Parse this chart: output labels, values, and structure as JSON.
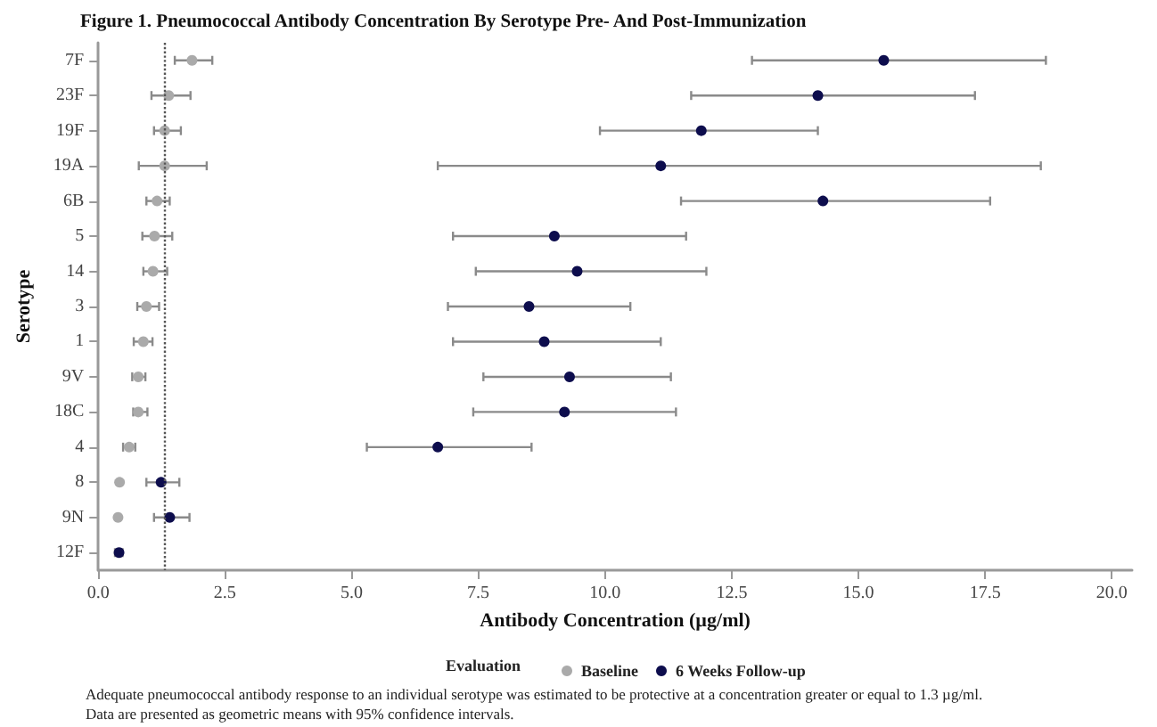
{
  "chart_data": {
    "type": "scatter",
    "orientation": "horizontal",
    "title": "Figure 1. Pneumococcal Antibody Concentration By Serotype Pre- And Post-Immunization",
    "xlabel": "Antibody Concentration (µg/ml)",
    "ylabel": "Serotype",
    "legend_title": "Evaluation",
    "legend": "bottom",
    "marker": "circle",
    "categories": [
      "7F",
      "23F",
      "19F",
      "19A",
      "6B",
      "5",
      "14",
      "3",
      "1",
      "9V",
      "18C",
      "4",
      "8",
      "9N",
      "12F"
    ],
    "series": [
      {
        "name": "Baseline",
        "color": "#aaaaaa",
        "values": [
          1.85,
          1.39,
          1.31,
          1.31,
          1.16,
          1.11,
          1.08,
          0.95,
          0.89,
          0.79,
          0.79,
          0.61,
          0.42,
          0.39,
          null
        ],
        "errors": [
          [
            1.51,
            2.25
          ],
          [
            1.05,
            1.82
          ],
          [
            1.1,
            1.63
          ],
          [
            0.8,
            2.14
          ],
          [
            0.95,
            1.41
          ],
          [
            0.87,
            1.46
          ],
          [
            0.89,
            1.36
          ],
          [
            0.77,
            1.2
          ],
          [
            0.7,
            1.07
          ],
          [
            0.67,
            0.93
          ],
          [
            0.69,
            0.97
          ],
          [
            0.49,
            0.73
          ],
          null,
          null,
          null
        ]
      },
      {
        "name": "6 Weeks Follow-up",
        "color": "#0d0d4d",
        "values": [
          15.5,
          14.2,
          11.9,
          11.1,
          14.3,
          9.0,
          9.45,
          8.5,
          8.8,
          9.3,
          9.2,
          6.7,
          1.24,
          1.41,
          0.41
        ],
        "errors": [
          [
            12.9,
            18.7
          ],
          [
            11.7,
            17.3
          ],
          [
            9.9,
            14.2
          ],
          [
            6.7,
            18.6
          ],
          [
            11.5,
            17.6
          ],
          [
            7.0,
            11.6
          ],
          [
            7.45,
            12.0
          ],
          [
            6.9,
            10.5
          ],
          [
            7.0,
            11.1
          ],
          [
            7.6,
            11.3
          ],
          [
            7.4,
            11.4
          ],
          [
            5.3,
            8.55
          ],
          [
            0.95,
            1.6
          ],
          [
            1.1,
            1.8
          ],
          [
            0.33,
            0.48
          ]
        ]
      }
    ],
    "xlim": [
      0,
      20.4
    ],
    "xticks": [
      {
        "value": 0,
        "label": "0.0"
      },
      {
        "value": 2.5,
        "label": "2.5"
      },
      {
        "value": 5,
        "label": "5.0"
      },
      {
        "value": 7.5,
        "label": "7.5"
      },
      {
        "value": 10,
        "label": "10.0"
      },
      {
        "value": 12.5,
        "label": "12.5"
      },
      {
        "value": 15,
        "label": "15.0"
      },
      {
        "value": 17.5,
        "label": "17.5"
      },
      {
        "value": 20,
        "label": "20.0"
      }
    ],
    "ref_lines": [
      {
        "axis": "x",
        "value": 1.3,
        "color": "#555555",
        "line_style": "dotted"
      }
    ],
    "grid": false,
    "annotations": [
      "Adequate pneumococcal antibody response to an individual serotype was estimated to be protective at a concentration greater or equal to 1.3 µg/ml.",
      "Data are presented as geometric means with 95% confidence intervals."
    ]
  }
}
